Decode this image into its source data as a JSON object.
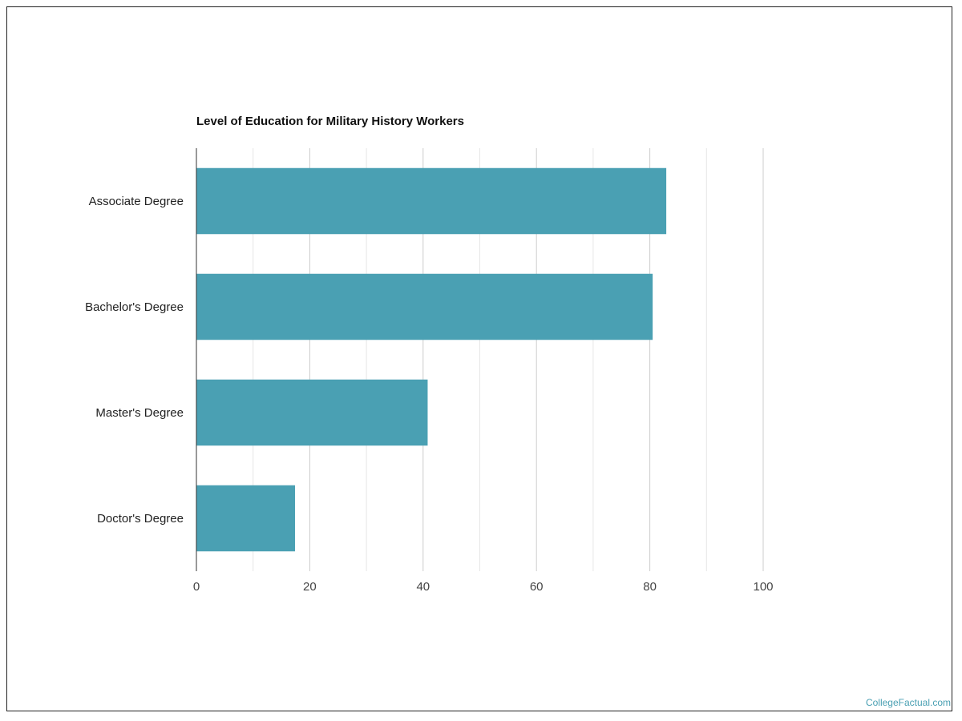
{
  "chart_data": {
    "type": "bar",
    "orientation": "horizontal",
    "title": "Level of Education for Military History Workers",
    "categories": [
      "Associate Degree",
      "Bachelor's Degree",
      "Master's Degree",
      "Doctor's Degree"
    ],
    "values": [
      82.9,
      80.5,
      40.8,
      17.4
    ],
    "xlim": [
      0,
      100
    ],
    "xticks": [
      "0",
      "20",
      "40",
      "60",
      "80",
      "100"
    ],
    "grid": true,
    "bar_color": "#4aa0b3"
  },
  "credit": "CollegeFactual.com"
}
